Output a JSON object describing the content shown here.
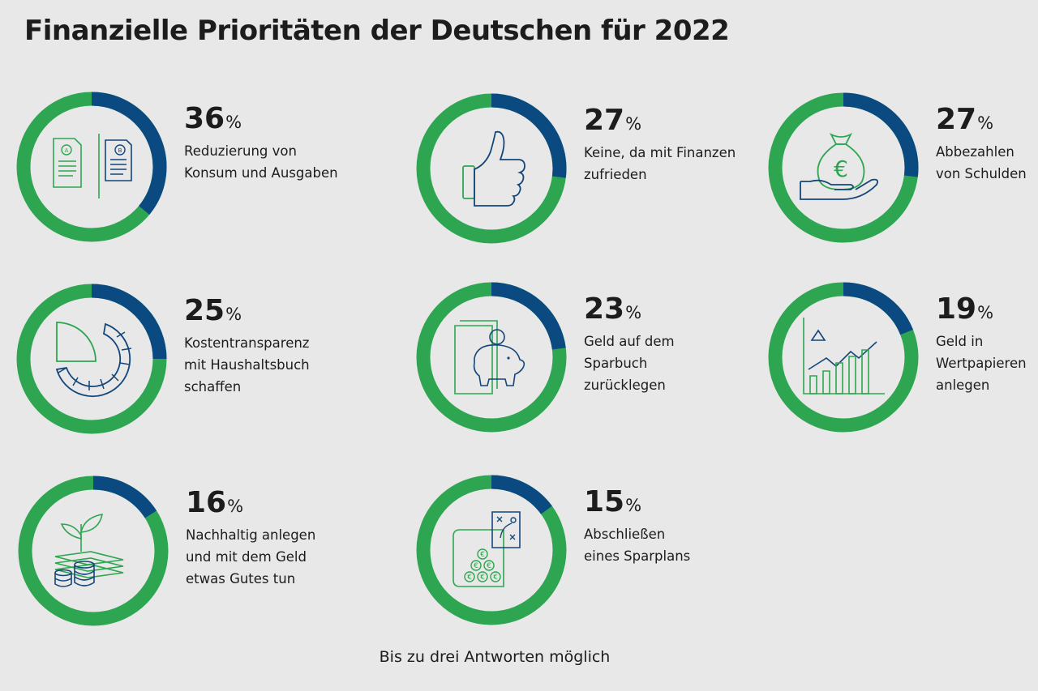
{
  "title": "Finanzielle Prioritäten der Deutschen für 2022",
  "footnote": "Bis zu drei Antworten möglich",
  "colors": {
    "accent": "#0a4a80",
    "ring": "#2ea651",
    "background": "#e8e8e8"
  },
  "unit": "%",
  "chart_data": {
    "type": "pie",
    "title": "Finanzielle Prioritäten der Deutschen für 2022",
    "note": "Bis zu drei Antworten möglich",
    "categories": [
      "Reduzierung von Konsum und Ausgaben",
      "Keine, da mit Finanzen zufrieden",
      "Abbezahlen von Schulden",
      "Kostentransparenz mit Haushaltsbuch schaffen",
      "Geld auf dem Sparbuch zurücklegen",
      "Geld in Wertpapieren anlegen",
      "Nachhaltig anlegen und mit dem Geld etwas Gutes tun",
      "Abschließen eines Sparplans"
    ],
    "values": [
      36,
      27,
      27,
      25,
      23,
      19,
      16,
      15
    ],
    "items": [
      {
        "value": 36,
        "label_lines": [
          "Reduzierung von",
          "Konsum und Ausgaben"
        ],
        "icon": "documents-ab-icon"
      },
      {
        "value": 27,
        "label_lines": [
          "Keine, da mit Finanzen",
          "zufrieden"
        ],
        "icon": "thumbs-up-icon"
      },
      {
        "value": 27,
        "label_lines": [
          "Abbezahlen",
          "von Schulden"
        ],
        "icon": "money-bag-hand-icon"
      },
      {
        "value": 25,
        "label_lines": [
          "Kostentransparenz",
          "mit Haushaltsbuch",
          "schaffen"
        ],
        "icon": "pie-chart-icon"
      },
      {
        "value": 23,
        "label_lines": [
          "Geld auf dem",
          "Sparbuch",
          "zurücklegen"
        ],
        "icon": "piggy-bank-book-icon"
      },
      {
        "value": 19,
        "label_lines": [
          "Geld in",
          "Wertpapieren",
          "anlegen"
        ],
        "icon": "growth-chart-icon"
      },
      {
        "value": 16,
        "label_lines": [
          "Nachhaltig anlegen",
          "und mit dem Geld",
          "etwas Gutes tun"
        ],
        "icon": "plant-money-icon"
      },
      {
        "value": 15,
        "label_lines": [
          "Abschließen",
          "eines Sparplans"
        ],
        "icon": "savings-plan-icon"
      }
    ]
  }
}
